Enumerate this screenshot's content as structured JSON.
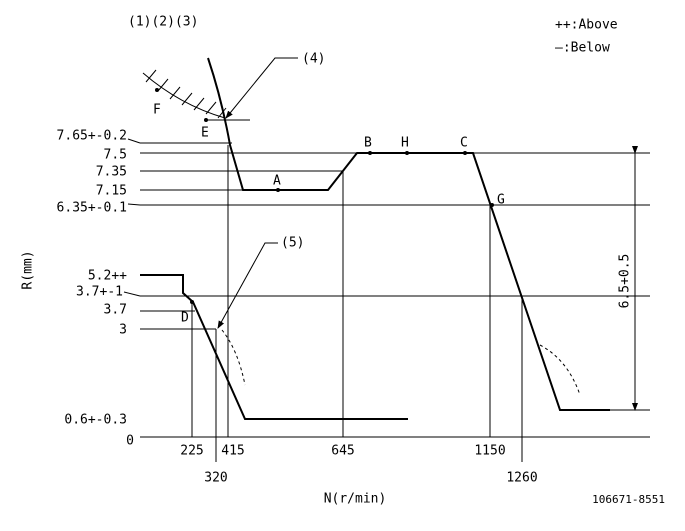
{
  "header": {
    "title": "(1)(2)(3)"
  },
  "legend": [
    "++:Above",
    "—:Below"
  ],
  "callouts": [
    "(4)",
    "(5)"
  ],
  "points": [
    "F",
    "E",
    "A",
    "B",
    "H",
    "C",
    "G",
    "D"
  ],
  "y_axis": {
    "label": "R(mm)",
    "ticks": [
      "7.65+-0.2",
      "7.5",
      "7.35",
      "7.15",
      "6.35+-0.1",
      "5.2++",
      "3.7+-1",
      "3.7",
      "3",
      "0.6+-0.3",
      "0"
    ]
  },
  "x_axis": {
    "label": "N(r/min)",
    "ticks": [
      "225",
      "415",
      "645",
      "1150",
      "320",
      "1260"
    ]
  },
  "dimension": "6.5+0.5",
  "drawing_id": "106671-8551"
}
